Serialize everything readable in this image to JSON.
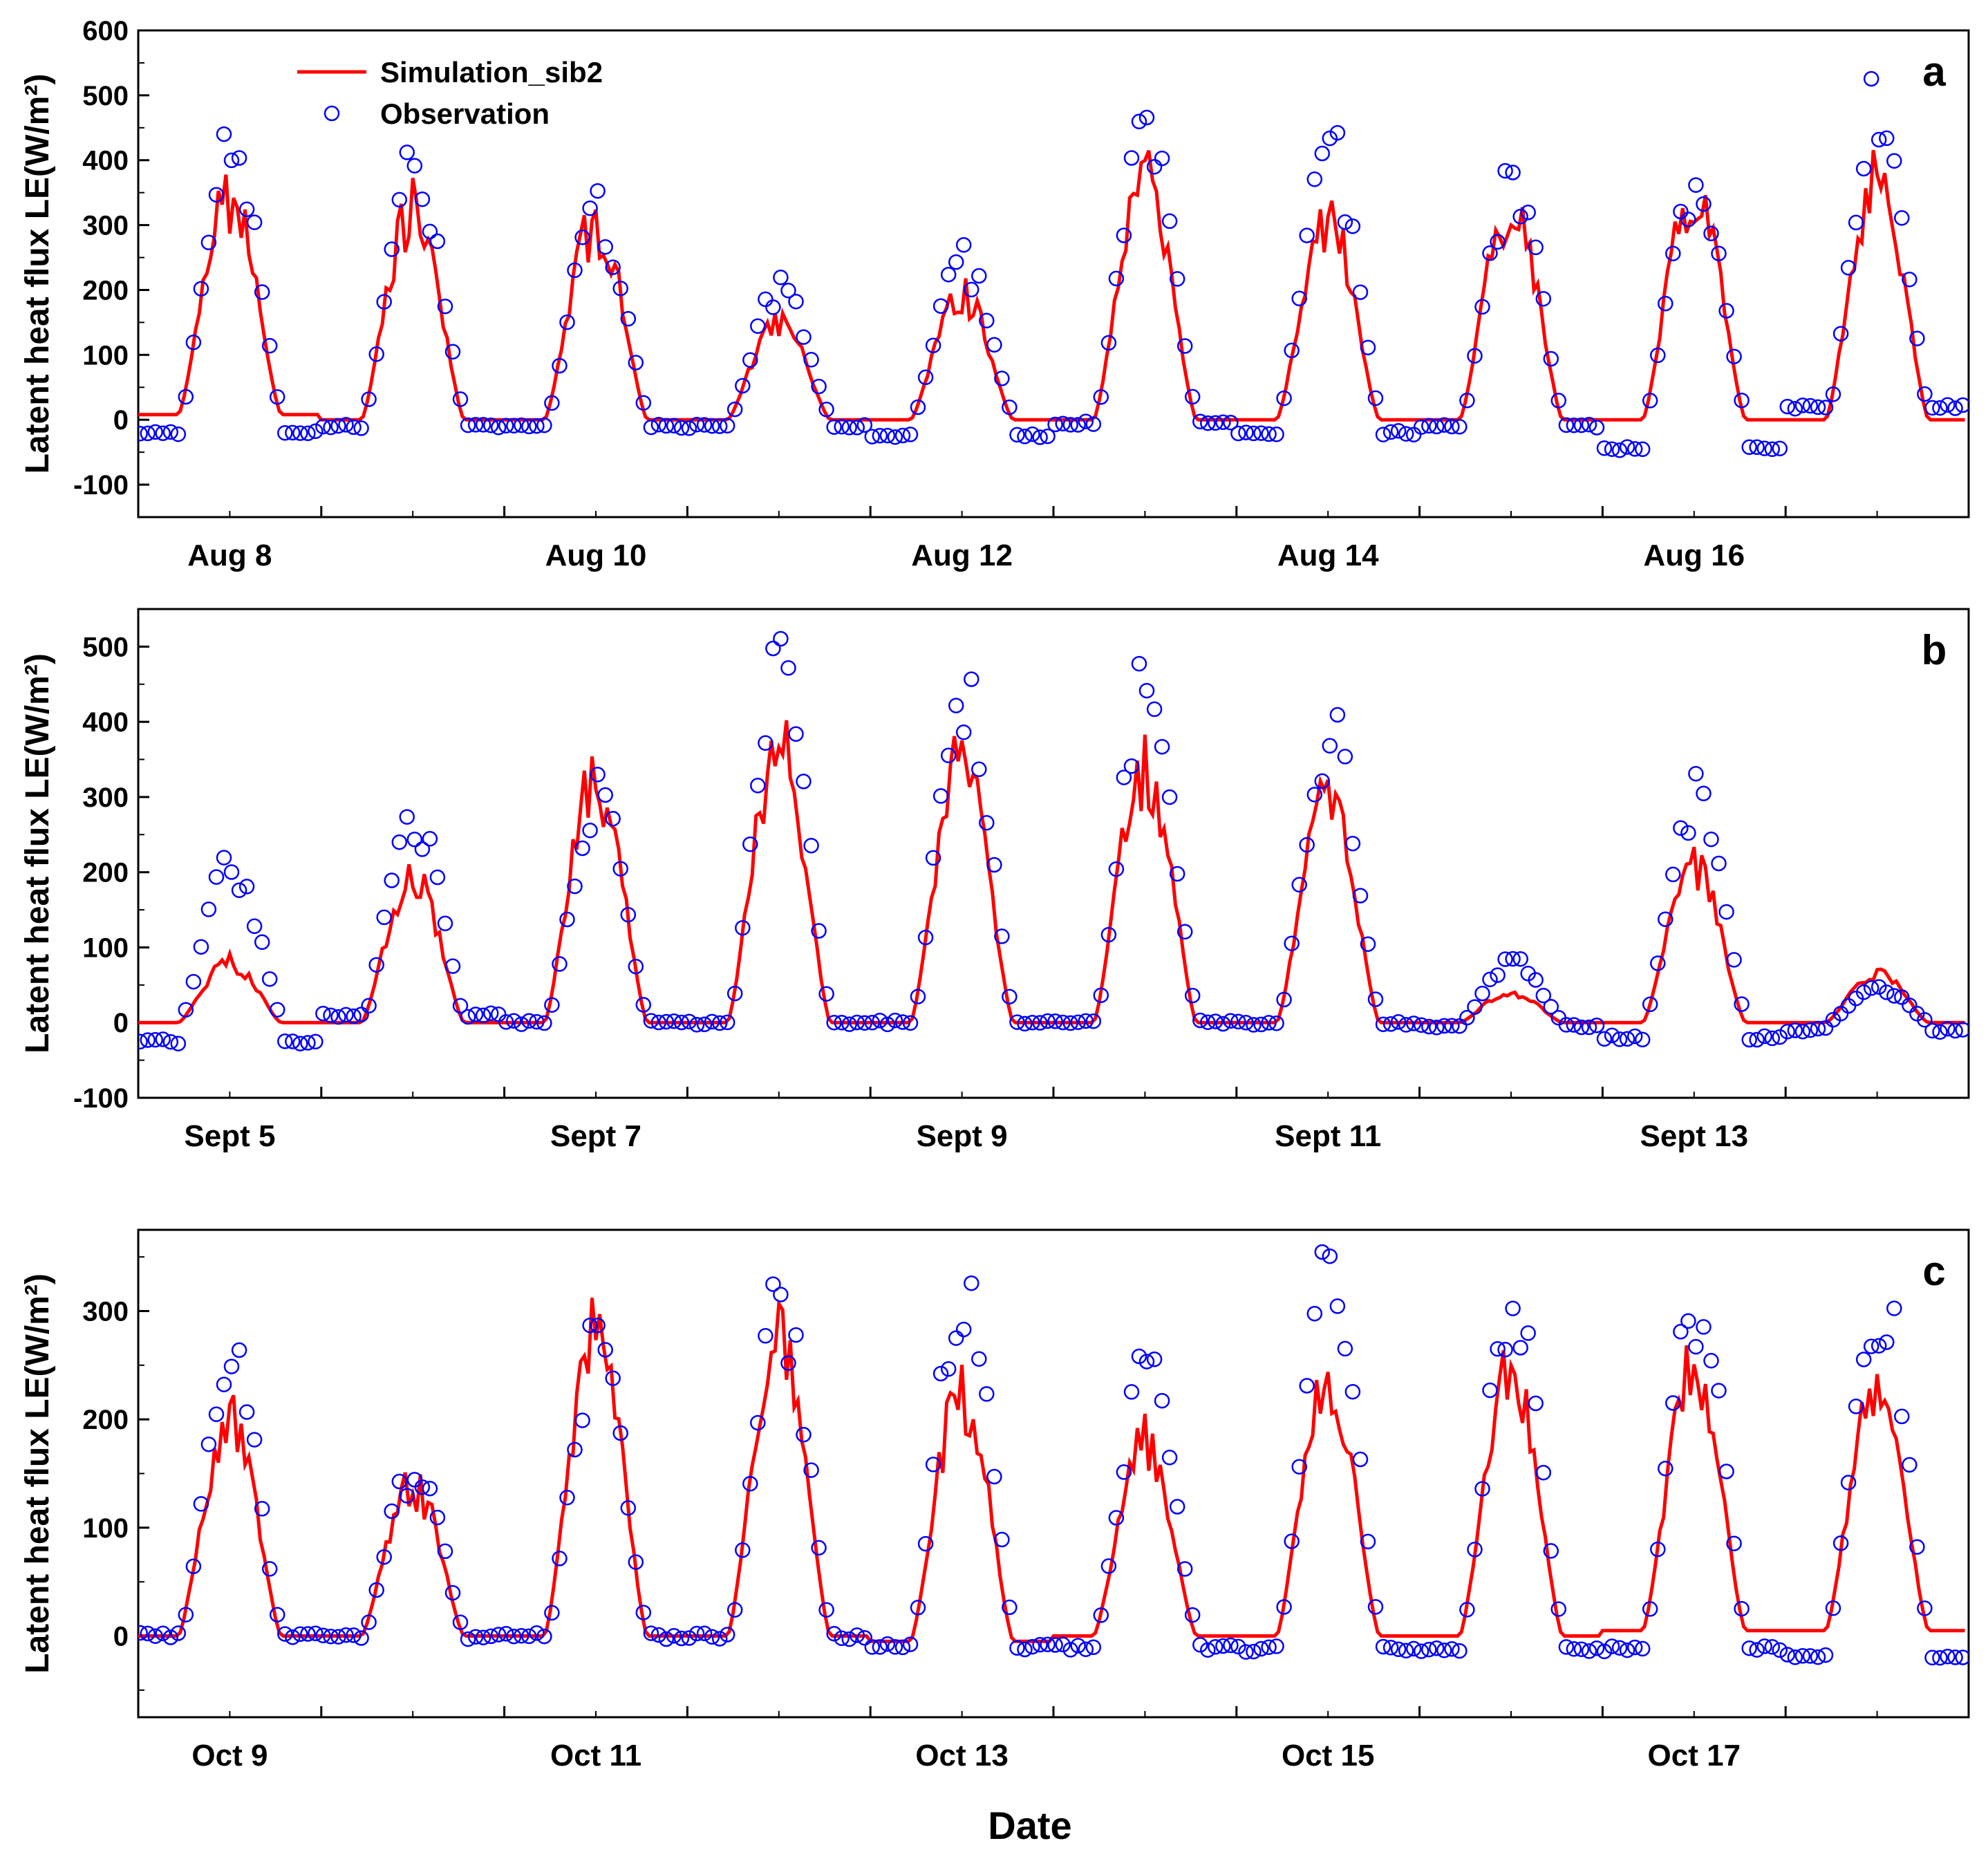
{
  "figure": {
    "xlabel": "Date",
    "colors": {
      "simulation": "#ff0000",
      "observation": "#0000ff",
      "axis": "#000000"
    }
  },
  "chart_data": [
    {
      "type": "line",
      "panel": "a",
      "title": "",
      "ylabel": "Latent heat flux LE(W/m²)",
      "xlim": [
        0,
        10
      ],
      "ylim": [
        -150,
        600
      ],
      "yticks": [
        -100,
        0,
        100,
        200,
        300,
        400,
        500,
        600
      ],
      "xtick_labels": [
        {
          "x": 0.5,
          "label": "Aug 8"
        },
        {
          "x": 2.5,
          "label": "Aug 10"
        },
        {
          "x": 4.5,
          "label": "Aug 12"
        },
        {
          "x": 6.5,
          "label": "Aug 14"
        },
        {
          "x": 8.5,
          "label": "Aug 16"
        }
      ],
      "legend": {
        "placement": "top-left",
        "entries": [
          "Simulation_sib2",
          "Observation"
        ]
      },
      "days": [
        {
          "peak": 330,
          "sim_scale": 1.0,
          "night": 8,
          "obs_night": -20,
          "obs_scale": 1.3
        },
        {
          "peak": 320,
          "sim_scale": 1.0,
          "night": 0,
          "obs_night": -10,
          "obs_scale": 1.2
        },
        {
          "peak": 300,
          "sim_scale": 1.0,
          "night": 0,
          "obs_night": -10,
          "obs_scale": 1.05
        },
        {
          "peak": 150,
          "sim_scale": 1.0,
          "night": 0,
          "obs_night": -10,
          "obs_scale": 1.3
        },
        {
          "peak": 190,
          "sim_scale": 1.0,
          "night": 0,
          "obs_night": -25,
          "obs_scale": 1.25
        },
        {
          "peak": 360,
          "sim_scale": 1.0,
          "night": 0,
          "obs_night": -5,
          "obs_scale": 1.2
        },
        {
          "peak": 300,
          "sim_scale": 1.0,
          "night": 0,
          "obs_night": -20,
          "obs_scale": 1.35
        },
        {
          "peak": 330,
          "sim_scale": 1.0,
          "night": 0,
          "obs_night": -10,
          "obs_scale": 1.1
        },
        {
          "peak": 360,
          "sim_scale": 1.0,
          "night": 0,
          "obs_night": -45,
          "obs_scale": 1.0
        },
        {
          "peak": 370,
          "sim_scale": 1.0,
          "night": 0,
          "obs_night": 20,
          "obs_scale": 1.3
        }
      ],
      "series": [
        {
          "name": "Simulation_sib2",
          "style": "line"
        },
        {
          "name": "Observation",
          "style": "open-circle"
        }
      ]
    },
    {
      "type": "line",
      "panel": "b",
      "title": "",
      "ylabel": "Latent heat flux LE(W/m²)",
      "xlim": [
        0,
        10
      ],
      "ylim": [
        -100,
        550
      ],
      "yticks": [
        -100,
        0,
        100,
        200,
        300,
        400,
        500
      ],
      "xtick_labels": [
        {
          "x": 0.5,
          "label": "Sept 5"
        },
        {
          "x": 2.5,
          "label": "Sept 7"
        },
        {
          "x": 4.5,
          "label": "Sept 9"
        },
        {
          "x": 6.5,
          "label": "Sept 11"
        },
        {
          "x": 8.5,
          "label": "Sept 13"
        }
      ],
      "days": [
        {
          "peak": 80,
          "sim_scale": 1.0,
          "night": 0,
          "obs_night": -25,
          "obs_scale": 2.6
        },
        {
          "peak": 190,
          "sim_scale": 1.0,
          "night": 0,
          "obs_night": 10,
          "obs_scale": 1.45
        },
        {
          "peak": 320,
          "sim_scale": 1.0,
          "night": 0,
          "obs_night": 0,
          "obs_scale": 0.9
        },
        {
          "peak": 360,
          "sim_scale": 1.0,
          "night": 0,
          "obs_night": 0,
          "obs_scale": 1.3
        },
        {
          "peak": 340,
          "sim_scale": 1.0,
          "night": 0,
          "obs_night": 0,
          "obs_scale": 1.25
        },
        {
          "peak": 340,
          "sim_scale": 1.0,
          "night": 0,
          "obs_night": 0,
          "obs_scale": 1.3
        },
        {
          "peak": 290,
          "sim_scale": 1.0,
          "night": 0,
          "obs_night": 0,
          "obs_scale": 1.3
        },
        {
          "peak": 40,
          "sim_scale": 1.0,
          "night": 0,
          "obs_night": -5,
          "obs_scale": 2.0
        },
        {
          "peak": 200,
          "sim_scale": 1.0,
          "night": 0,
          "obs_night": -20,
          "obs_scale": 1.5
        },
        {
          "peak": 65,
          "sim_scale": 1.0,
          "night": 0,
          "obs_night": -10,
          "obs_scale": 0.7
        }
      ],
      "series": [
        {
          "name": "Simulation_sib2",
          "style": "line"
        },
        {
          "name": "Observation",
          "style": "open-circle"
        }
      ]
    },
    {
      "type": "line",
      "panel": "c",
      "title": "",
      "ylabel": "Latent heat flux LE(W/m²)",
      "xlim": [
        0,
        10
      ],
      "ylim": [
        -75,
        375
      ],
      "yticks": [
        0,
        100,
        200,
        300
      ],
      "xtick_labels": [
        {
          "x": 0.5,
          "label": "Oct 9"
        },
        {
          "x": 2.5,
          "label": "Oct 11"
        },
        {
          "x": 4.5,
          "label": "Oct 13"
        },
        {
          "x": 6.5,
          "label": "Oct 15"
        },
        {
          "x": 8.5,
          "label": "Oct 17"
        }
      ],
      "days": [
        {
          "peak": 200,
          "sim_scale": 1.0,
          "night": 0,
          "obs_night": 0,
          "obs_scale": 1.2
        },
        {
          "peak": 140,
          "sim_scale": 1.0,
          "night": 0,
          "obs_night": 0,
          "obs_scale": 1.1
        },
        {
          "peak": 275,
          "sim_scale": 1.0,
          "night": 0,
          "obs_night": 0,
          "obs_scale": 0.95
        },
        {
          "peak": 265,
          "sim_scale": 1.0,
          "night": 0,
          "obs_night": 0,
          "obs_scale": 1.12
        },
        {
          "peak": 230,
          "sim_scale": 1.0,
          "night": -5,
          "obs_night": -10,
          "obs_scale": 1.4
        },
        {
          "peak": 175,
          "sim_scale": 1.0,
          "night": 0,
          "obs_night": -10,
          "obs_scale": 1.35
        },
        {
          "peak": 240,
          "sim_scale": 1.0,
          "night": 0,
          "obs_night": -12,
          "obs_scale": 1.35
        },
        {
          "peak": 240,
          "sim_scale": 1.0,
          "night": 0,
          "obs_night": -12,
          "obs_scale": 1.25
        },
        {
          "peak": 235,
          "sim_scale": 1.0,
          "night": 5,
          "obs_night": -12,
          "obs_scale": 1.3
        },
        {
          "peak": 225,
          "sim_scale": 1.0,
          "night": 5,
          "obs_night": -20,
          "obs_scale": 1.4
        }
      ],
      "series": [
        {
          "name": "Simulation_sib2",
          "style": "line"
        },
        {
          "name": "Observation",
          "style": "open-circle"
        }
      ]
    }
  ]
}
